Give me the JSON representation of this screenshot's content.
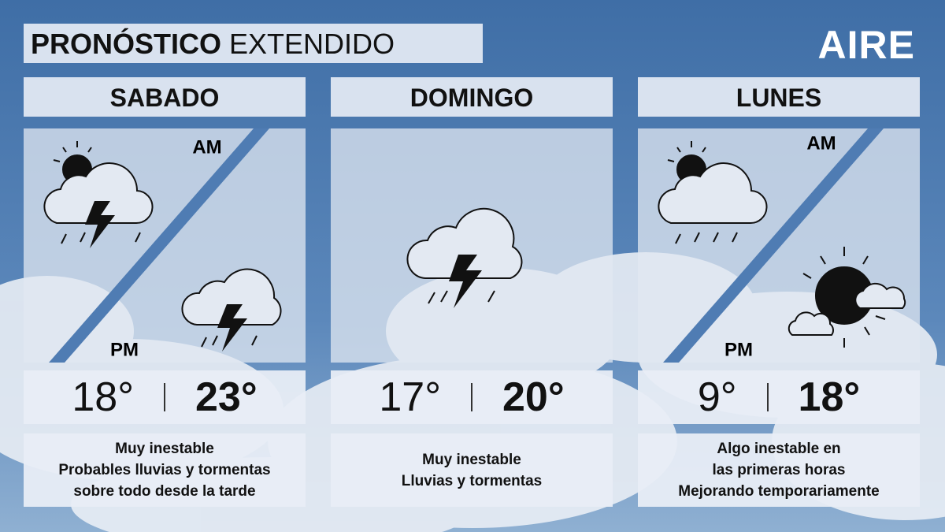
{
  "header": {
    "title_bold": "PRONÓSTICO",
    "title_light": "EXTENDIDO",
    "brand": "AIRE"
  },
  "days": [
    {
      "name": "SABADO",
      "am_label": "AM",
      "pm_label": "PM",
      "min": "18°",
      "max": "23°",
      "description": [
        "Muy inestable",
        "Probables lluvias y tormentas",
        "sobre todo desde la tarde"
      ]
    },
    {
      "name": "DOMINGO",
      "min": "17°",
      "max": "20°",
      "description": [
        "Muy inestable",
        "Lluvias y tormentas"
      ]
    },
    {
      "name": "LUNES",
      "am_label": "AM",
      "pm_label": "PM",
      "min": "9°",
      "max": "18°",
      "description": [
        "Algo inestable en",
        "las primeras horas",
        "Mejorando temporariamente"
      ]
    }
  ]
}
